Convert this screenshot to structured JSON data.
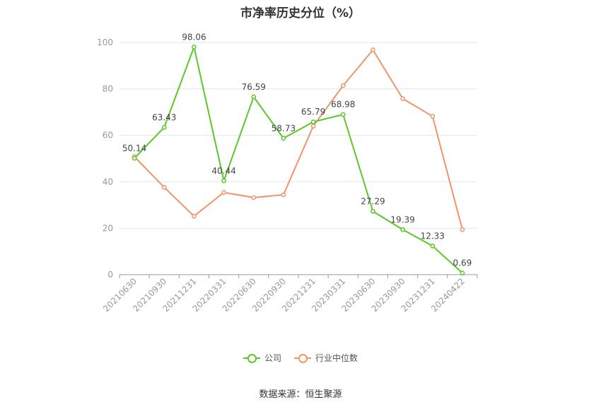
{
  "chart_data": {
    "type": "line",
    "title": "市净率历史分位（%）",
    "categories": [
      "20210630",
      "20210930",
      "20211231",
      "20220331",
      "20220630",
      "20220930",
      "20221231",
      "20230331",
      "20230630",
      "20230930",
      "20231231",
      "20240422"
    ],
    "ylim": [
      0,
      100
    ],
    "yticks": [
      0,
      20,
      40,
      60,
      80,
      100
    ],
    "grid": true,
    "legend_position": "bottom",
    "series": [
      {
        "name": "公司",
        "color": "#5ac828",
        "values": [
          50.14,
          63.43,
          98.06,
          40.44,
          76.59,
          58.73,
          65.79,
          68.98,
          27.29,
          19.39,
          12.33,
          0.69
        ],
        "labels": [
          "50.14",
          "63.43",
          "98.06",
          "40.44",
          "76.59",
          "58.73",
          "65.79",
          "68.98",
          "27.29",
          "19.39",
          "12.33",
          "0.69"
        ]
      },
      {
        "name": "行业中位数",
        "color": "#f0946a",
        "values": [
          50.8,
          37.6,
          25.2,
          35.4,
          33.2,
          34.4,
          64.0,
          81.4,
          96.8,
          75.8,
          68.2,
          19.4
        ]
      }
    ]
  },
  "source": "数据来源：恒生聚源"
}
